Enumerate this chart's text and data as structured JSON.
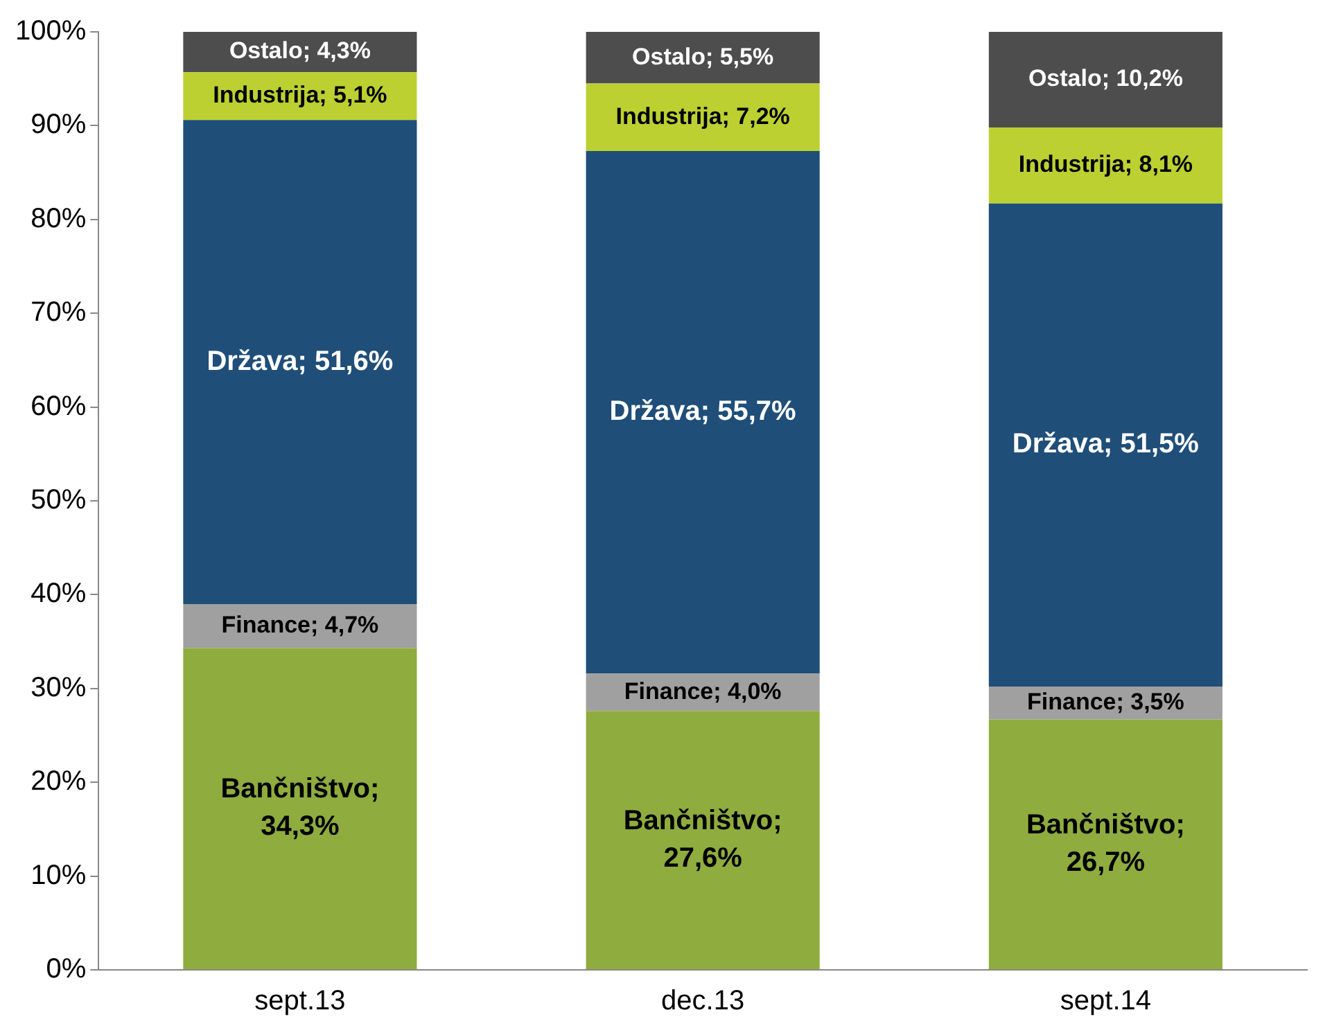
{
  "chart_data": {
    "type": "bar",
    "stacked": true,
    "categories": [
      "sept.13",
      "dec.13",
      "sept.14"
    ],
    "series": [
      {
        "color": "#8fac3e",
        "values": [
          34.3,
          27.6,
          26.7
        ],
        "value_labels": [
          "Bančništvo; 34,3%",
          "Bančništvo; 27,6%",
          "Bančništvo; 26,7%"
        ]
      },
      {
        "color": "#a0a0a0",
        "values": [
          4.7,
          4.0,
          3.5
        ],
        "value_labels": [
          "Finance; 4,7%",
          "Finance; 4,0%",
          "Finance; 3,5%"
        ]
      },
      {
        "color": "#1f4e79",
        "values": [
          51.6,
          55.7,
          51.5
        ],
        "value_labels": [
          "Država; 51,6%",
          "Država; 55,7%",
          "Država; 51,5%"
        ]
      },
      {
        "color": "#bcd032",
        "values": [
          5.1,
          7.2,
          8.1
        ],
        "value_labels": [
          "Industrija; 5,1%",
          "Industrija; 7,2%",
          "Industrija; 8,1%"
        ]
      },
      {
        "color": "#4d4d4d",
        "values": [
          4.3,
          5.5,
          10.2
        ],
        "value_labels": [
          "Ostalo; 4,3%",
          "Ostalo; 5,5%",
          "Ostalo; 10,2%"
        ]
      }
    ],
    "ylim": [
      0,
      100
    ],
    "yticks": [
      {
        "value": 0,
        "label": "0%"
      },
      {
        "value": 10,
        "label": "10%"
      },
      {
        "value": 20,
        "label": "20%"
      },
      {
        "value": 30,
        "label": "30%"
      },
      {
        "value": 40,
        "label": "40%"
      },
      {
        "value": 50,
        "label": "50%"
      },
      {
        "value": 60,
        "label": "60%"
      },
      {
        "value": 70,
        "label": "70%"
      },
      {
        "value": 80,
        "label": "80%"
      },
      {
        "value": 90,
        "label": "90%"
      },
      {
        "value": 100,
        "label": "100%"
      }
    ],
    "grid": false,
    "legend": false
  }
}
